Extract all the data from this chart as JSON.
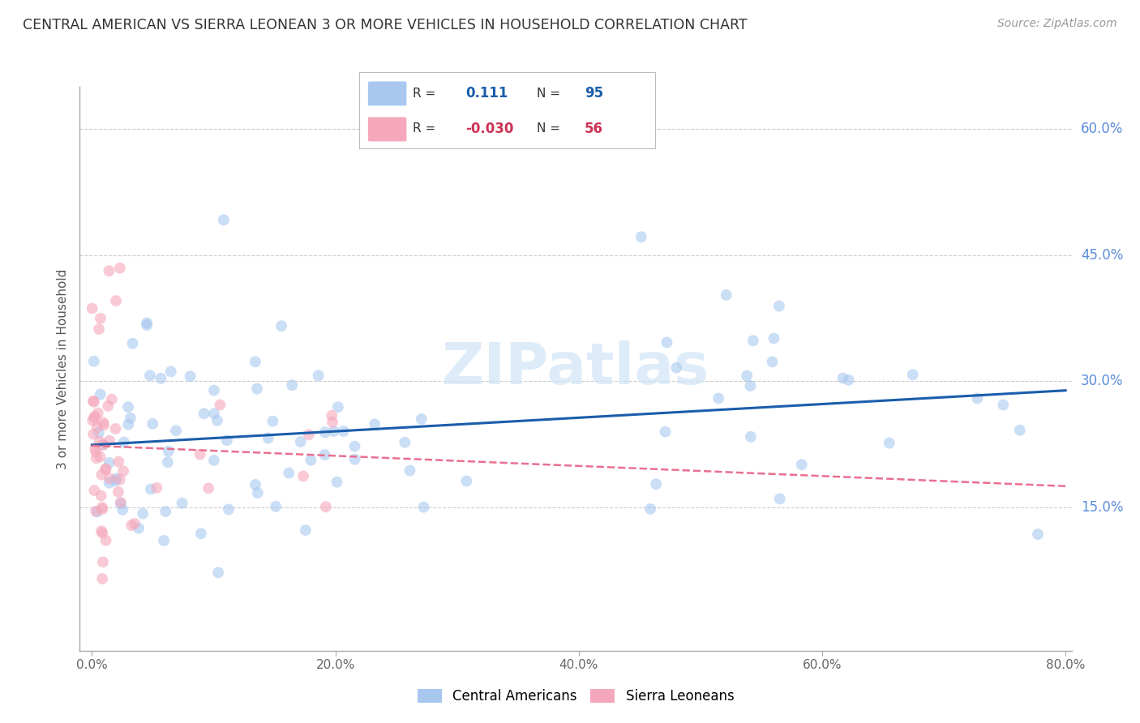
{
  "title": "CENTRAL AMERICAN VS SIERRA LEONEAN 3 OR MORE VEHICLES IN HOUSEHOLD CORRELATION CHART",
  "source": "Source: ZipAtlas.com",
  "ylabel": "3 or more Vehicles in Household",
  "xlabel_ticks": [
    "0.0%",
    "20.0%",
    "40.0%",
    "60.0%",
    "80.0%"
  ],
  "xlabel_vals": [
    0.0,
    0.2,
    0.4,
    0.6,
    0.8
  ],
  "ylabel_ticks": [
    "15.0%",
    "30.0%",
    "45.0%",
    "60.0%"
  ],
  "ylabel_vals": [
    0.15,
    0.3,
    0.45,
    0.6
  ],
  "xmin": 0.0,
  "xmax": 0.8,
  "ymin": 0.0,
  "ymax": 0.65,
  "blue_color": "#a8c8f0",
  "pink_color": "#f5a8bc",
  "blue_line_color": "#1a5dab",
  "pink_line_color": "#e87090",
  "legend_blue_R": "0.111",
  "legend_blue_N": "95",
  "legend_pink_R": "-0.030",
  "legend_pink_N": "56",
  "watermark": "ZIPatlas",
  "background_color": "#ffffff",
  "grid_color": "#cccccc",
  "axis_color": "#aaaaaa",
  "title_color": "#333333",
  "right_label_color": "#5b8dd9",
  "scatter_alpha": 0.6,
  "scatter_size": 100
}
